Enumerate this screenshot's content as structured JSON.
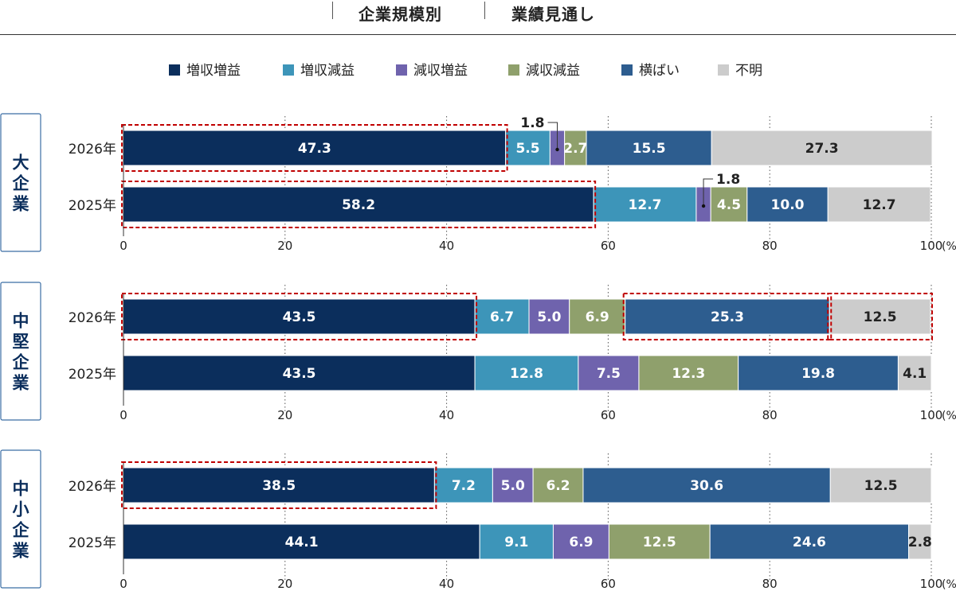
{
  "header": {
    "left_title": "企業規模別",
    "right_title": "業績見通し"
  },
  "colors": {
    "増収増益": "#0b2e5c",
    "増収減益": "#3d95b9",
    "減収増益": "#6f63ad",
    "減収減益": "#8fa06c",
    "横ばい": "#2d5d8f",
    "不明": "#cccccc",
    "highlight": "#c00000",
    "group_border": "#3b6ea5",
    "group_text": "#0b2e5c"
  },
  "chart_data": {
    "type": "bar",
    "orientation": "horizontal",
    "stacked": true,
    "legend": [
      "増収増益",
      "増収減益",
      "減収増益",
      "減収減益",
      "横ばい",
      "不明"
    ],
    "legend_position": "top",
    "xlim": [
      0,
      100
    ],
    "xticks": [
      "0",
      "20",
      "40",
      "60",
      "80",
      "100"
    ],
    "x_unit": "(%)",
    "grid": "dotted vertical",
    "groups": [
      {
        "label": "大企業",
        "rows": [
          {
            "year": "2026年",
            "values": [
              47.3,
              5.5,
              1.8,
              2.7,
              15.5,
              27.3
            ],
            "highlight": [
              0
            ]
          },
          {
            "year": "2025年",
            "values": [
              58.2,
              12.7,
              1.8,
              4.5,
              10.0,
              12.7
            ],
            "highlight": [
              0
            ]
          }
        ]
      },
      {
        "label": "中堅企業",
        "rows": [
          {
            "year": "2026年",
            "values": [
              43.5,
              6.7,
              5.0,
              6.9,
              25.3,
              12.5
            ],
            "highlight": [
              0,
              4,
              5
            ]
          },
          {
            "year": "2025年",
            "values": [
              43.5,
              12.8,
              7.5,
              12.3,
              19.8,
              4.1
            ],
            "highlight": []
          }
        ]
      },
      {
        "label": "中小企業",
        "rows": [
          {
            "year": "2026年",
            "values": [
              38.5,
              7.2,
              5.0,
              6.2,
              30.6,
              12.5
            ],
            "highlight": [
              0
            ]
          },
          {
            "year": "2025年",
            "values": [
              44.1,
              9.1,
              6.9,
              12.5,
              24.6,
              2.8
            ],
            "highlight": []
          }
        ]
      }
    ]
  }
}
